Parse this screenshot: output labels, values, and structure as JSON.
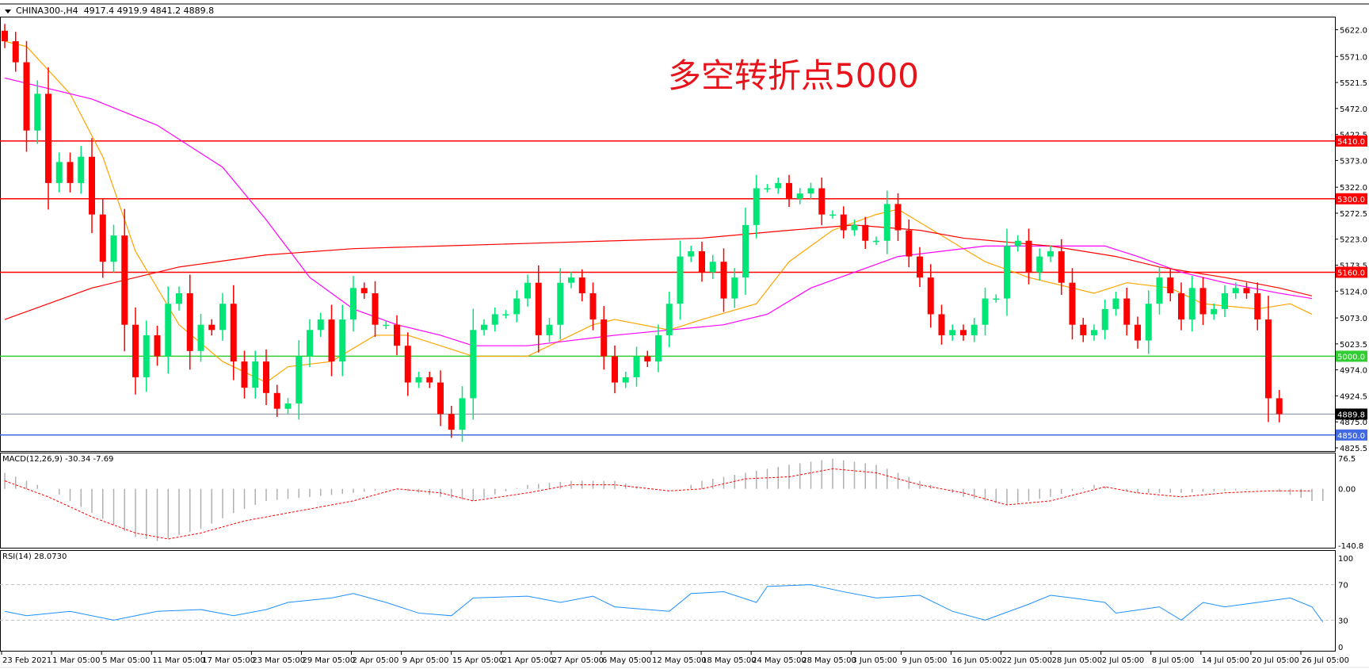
{
  "chart_data": {
    "type": "candlestick",
    "symbol_header": "CHINA300-,H4",
    "ohlc_header": "4917.4 4919.9 4841.2 4889.8",
    "annotation": "多空转折点5000",
    "ylim": [
      4825.5,
      5622.0
    ],
    "y_ticks": [
      "5622.0",
      "5571.0",
      "5521.5",
      "5472.0",
      "5422.5",
      "5373.0",
      "5322.0",
      "5272.5",
      "5223.0",
      "5173.5",
      "5124.0",
      "5073.0",
      "5023.5",
      "4974.0",
      "4924.5",
      "4875.0",
      "4825.5"
    ],
    "x_ticks": [
      "23 Feb 2021",
      "1 Mar 05:00",
      "5 Mar 05:00",
      "11 Mar 05:00",
      "17 Mar 05:00",
      "23 Mar 05:00",
      "29 Mar 05:00",
      "2 Apr 05:00",
      "9 Apr 05:00",
      "15 Apr 05:00",
      "21 Apr 05:00",
      "27 Apr 05:00",
      "6 May 05:00",
      "12 May 05:00",
      "18 May 05:00",
      "24 May 05:00",
      "28 May 05:00",
      "3 Jun 05:00",
      "9 Jun 05:00",
      "16 Jun 05:00",
      "22 Jun 05:00",
      "28 Jun 05:00",
      "2 Jul 05:00",
      "8 Jul 05:00",
      "14 Jul 05:00",
      "20 Jul 05:00",
      "26 Jul 05:00"
    ],
    "closes": [
      5600,
      5560,
      5430,
      5500,
      5330,
      5370,
      5330,
      5380,
      5270,
      5180,
      5230,
      5060,
      4960,
      5040,
      5000,
      5100,
      5120,
      5010,
      5060,
      5050,
      5100,
      4990,
      4940,
      4990,
      4930,
      4900,
      4910,
      5000,
      5050,
      5070,
      4990,
      5070,
      5130,
      5120,
      5060,
      5060,
      5020,
      4950,
      4960,
      4950,
      4890,
      4860,
      4920,
      5050,
      5060,
      5080,
      5080,
      5110,
      5140,
      5040,
      5060,
      5140,
      5150,
      5120,
      5070,
      5000,
      4950,
      4960,
      5000,
      4990,
      5040,
      5100,
      5190,
      5200,
      5160,
      5180,
      5110,
      5150,
      5250,
      5320,
      5320,
      5330,
      5300,
      5310,
      5320,
      5270,
      5270,
      5240,
      5250,
      5220,
      5220,
      5290,
      5240,
      5190,
      5150,
      5080,
      5040,
      5050,
      5040,
      5060,
      5110,
      5110,
      5210,
      5220,
      5160,
      5190,
      5200,
      5140,
      5060,
      5040,
      5050,
      5090,
      5110,
      5060,
      5030,
      5100,
      5150,
      5120,
      5070,
      5130,
      5080,
      5090,
      5120,
      5130,
      5120,
      5070,
      4920,
      4889.8
    ],
    "moving_averages": [
      {
        "color": "#ffa500",
        "points": [
          [
            0,
            5600
          ],
          [
            2,
            5590
          ],
          [
            6,
            5500
          ],
          [
            9,
            5380
          ],
          [
            12,
            5200
          ],
          [
            16,
            5060
          ],
          [
            20,
            4990
          ],
          [
            24,
            4950
          ],
          [
            26,
            4980
          ],
          [
            30,
            4990
          ],
          [
            34,
            5040
          ],
          [
            37,
            5040
          ],
          [
            40,
            5020
          ],
          [
            43,
            5000
          ],
          [
            48,
            5000
          ],
          [
            51,
            5030
          ],
          [
            54,
            5060
          ],
          [
            56,
            5070
          ],
          [
            61,
            5050
          ],
          [
            64,
            5070
          ],
          [
            69,
            5100
          ],
          [
            72,
            5180
          ],
          [
            76,
            5240
          ],
          [
            80,
            5270
          ],
          [
            82,
            5280
          ],
          [
            86,
            5230
          ],
          [
            90,
            5180
          ],
          [
            94,
            5150
          ],
          [
            98,
            5130
          ],
          [
            100,
            5120
          ],
          [
            103,
            5140
          ],
          [
            107,
            5130
          ],
          [
            110,
            5100
          ],
          [
            115,
            5090
          ],
          [
            118,
            5100
          ],
          [
            120,
            5080
          ]
        ]
      },
      {
        "color": "#ff00ff",
        "points": [
          [
            0,
            5530
          ],
          [
            4,
            5510
          ],
          [
            8,
            5490
          ],
          [
            14,
            5440
          ],
          [
            20,
            5360
          ],
          [
            24,
            5260
          ],
          [
            28,
            5150
          ],
          [
            32,
            5090
          ],
          [
            36,
            5060
          ],
          [
            40,
            5040
          ],
          [
            43,
            5020
          ],
          [
            48,
            5020
          ],
          [
            52,
            5030
          ],
          [
            56,
            5040
          ],
          [
            61,
            5050
          ],
          [
            66,
            5060
          ],
          [
            70,
            5080
          ],
          [
            74,
            5130
          ],
          [
            78,
            5160
          ],
          [
            82,
            5190
          ],
          [
            86,
            5200
          ],
          [
            90,
            5210
          ],
          [
            96,
            5210
          ],
          [
            101,
            5210
          ],
          [
            104,
            5190
          ],
          [
            108,
            5160
          ],
          [
            112,
            5140
          ],
          [
            117,
            5120
          ],
          [
            120,
            5110
          ]
        ]
      },
      {
        "color": "#ff0000",
        "points": [
          [
            0,
            5070
          ],
          [
            8,
            5130
          ],
          [
            16,
            5170
          ],
          [
            24,
            5193
          ],
          [
            32,
            5205
          ],
          [
            40,
            5210
          ],
          [
            48,
            5215
          ],
          [
            56,
            5220
          ],
          [
            64,
            5225
          ],
          [
            72,
            5240
          ],
          [
            78,
            5250
          ],
          [
            84,
            5240
          ],
          [
            88,
            5225
          ],
          [
            96,
            5210
          ],
          [
            102,
            5190
          ],
          [
            106,
            5170
          ],
          [
            112,
            5150
          ],
          [
            117,
            5130
          ],
          [
            120,
            5115
          ]
        ]
      }
    ],
    "levels": [
      {
        "value": 5410.0,
        "label": "5410.0",
        "color": "#ff0000"
      },
      {
        "value": 5300.0,
        "label": "5300.0",
        "color": "#ff0000"
      },
      {
        "value": 5160.0,
        "label": "5160.0",
        "color": "#ff0000"
      },
      {
        "value": 5000.0,
        "label": "5000.0",
        "color": "#32cd32"
      },
      {
        "value": 4889.8,
        "label": "4889.8",
        "color": "#000000",
        "line_color": "#7f8a99"
      },
      {
        "value": 4850.0,
        "label": "4850.0",
        "color": "#4169e1"
      }
    ],
    "macd": {
      "label": "MACD(12,26,9) -30.34 -7.69",
      "ylim": [
        -140.8,
        76.5
      ],
      "y_ticks": [
        "76.5",
        "0.00",
        "-140.8"
      ],
      "histogram": [
        [
          0,
          40
        ],
        [
          4,
          0
        ],
        [
          8,
          -60
        ],
        [
          12,
          -120
        ],
        [
          14,
          -130
        ],
        [
          18,
          -100
        ],
        [
          21,
          -60
        ],
        [
          24,
          -30
        ],
        [
          28,
          -20
        ],
        [
          32,
          -10
        ],
        [
          36,
          0
        ],
        [
          40,
          -20
        ],
        [
          43,
          -30
        ],
        [
          48,
          10
        ],
        [
          52,
          20
        ],
        [
          56,
          20
        ],
        [
          59,
          0
        ],
        [
          62,
          0
        ],
        [
          64,
          20
        ],
        [
          68,
          40
        ],
        [
          72,
          60
        ],
        [
          76,
          75
        ],
        [
          80,
          60
        ],
        [
          84,
          20
        ],
        [
          88,
          -20
        ],
        [
          92,
          -40
        ],
        [
          96,
          -20
        ],
        [
          100,
          10
        ],
        [
          104,
          -10
        ],
        [
          108,
          -10
        ],
        [
          112,
          -5
        ],
        [
          116,
          0
        ],
        [
          120,
          -30
        ]
      ],
      "signal": [
        [
          0,
          20
        ],
        [
          4,
          -20
        ],
        [
          8,
          -70
        ],
        [
          12,
          -110
        ],
        [
          15,
          -125
        ],
        [
          18,
          -110
        ],
        [
          22,
          -80
        ],
        [
          26,
          -60
        ],
        [
          32,
          -30
        ],
        [
          36,
          0
        ],
        [
          40,
          -10
        ],
        [
          43,
          -30
        ],
        [
          48,
          -10
        ],
        [
          52,
          10
        ],
        [
          56,
          10
        ],
        [
          61,
          -5
        ],
        [
          64,
          0
        ],
        [
          68,
          25
        ],
        [
          72,
          30
        ],
        [
          76,
          50
        ],
        [
          80,
          40
        ],
        [
          84,
          10
        ],
        [
          88,
          -10
        ],
        [
          92,
          -40
        ],
        [
          96,
          -30
        ],
        [
          101,
          5
        ],
        [
          104,
          -10
        ],
        [
          108,
          -20
        ],
        [
          112,
          -10
        ],
        [
          116,
          -5
        ],
        [
          120,
          -5
        ]
      ]
    },
    "rsi": {
      "label": "RSI(14) 28.0730",
      "ylim": [
        0,
        100
      ],
      "y_ticks": [
        "100",
        "70",
        "30",
        "0"
      ],
      "levels": [
        70,
        30
      ],
      "values": [
        [
          0,
          40
        ],
        [
          2,
          35
        ],
        [
          6,
          40
        ],
        [
          10,
          30
        ],
        [
          14,
          40
        ],
        [
          18,
          42
        ],
        [
          21,
          35
        ],
        [
          24,
          42
        ],
        [
          26,
          50
        ],
        [
          30,
          55
        ],
        [
          32,
          60
        ],
        [
          35,
          50
        ],
        [
          38,
          38
        ],
        [
          41,
          35
        ],
        [
          43,
          55
        ],
        [
          48,
          57
        ],
        [
          51,
          50
        ],
        [
          54,
          57
        ],
        [
          56,
          45
        ],
        [
          61,
          40
        ],
        [
          63,
          60
        ],
        [
          66,
          62
        ],
        [
          69,
          50
        ],
        [
          70,
          68
        ],
        [
          74,
          70
        ],
        [
          77,
          62
        ],
        [
          80,
          55
        ],
        [
          84,
          58
        ],
        [
          87,
          40
        ],
        [
          90,
          30
        ],
        [
          94,
          48
        ],
        [
          96,
          58
        ],
        [
          98,
          55
        ],
        [
          101,
          50
        ],
        [
          102,
          38
        ],
        [
          106,
          45
        ],
        [
          108,
          30
        ],
        [
          110,
          50
        ],
        [
          112,
          45
        ],
        [
          115,
          50
        ],
        [
          118,
          55
        ],
        [
          120,
          45
        ],
        [
          121,
          28
        ]
      ]
    },
    "colors": {
      "up": "#00e676",
      "down": "#ff0000",
      "grid": "#c0c0c0"
    }
  }
}
